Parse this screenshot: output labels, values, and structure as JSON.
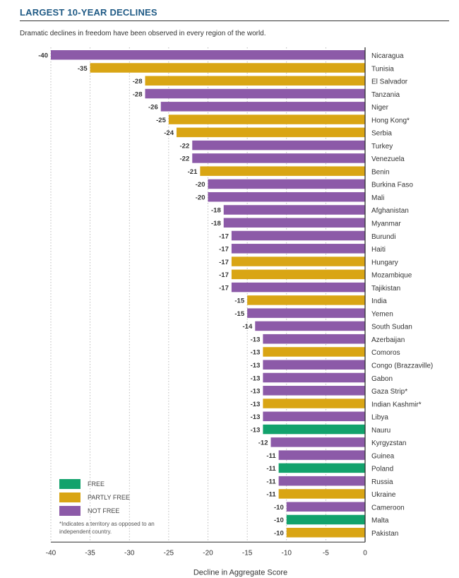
{
  "header": {
    "title": "LARGEST 10-YEAR DECLINES",
    "subtitle": "Dramatic declines in freedom have been observed in every region of the world."
  },
  "legend": {
    "items": [
      {
        "label": "FREE",
        "status": "free"
      },
      {
        "label": "PARTLY FREE",
        "status": "partly"
      },
      {
        "label": "NOT FREE",
        "status": "not"
      }
    ],
    "footnote": "*Indicates a territory as opposed to an independent country."
  },
  "colors": {
    "free": "#12a26c",
    "partly": "#d9a514",
    "not": "#8c5aa8"
  },
  "chart_data": {
    "type": "bar",
    "orientation": "horizontal",
    "title": "LARGEST 10-YEAR DECLINES",
    "xlabel": "Decline in Aggregate Score",
    "ylabel": "",
    "xlim": [
      -40,
      0
    ],
    "xticks": [
      -40,
      -35,
      -30,
      -25,
      -20,
      -15,
      -10,
      -5,
      0
    ],
    "grid": "vertical dotted",
    "legend_position": "bottom-left",
    "categories": [
      "Nicaragua",
      "Tunisia",
      "El Salvador",
      "Tanzania",
      "Niger",
      "Hong Kong*",
      "Serbia",
      "Turkey",
      "Venezuela",
      "Benin",
      "Burkina Faso",
      "Mali",
      "Afghanistan",
      "Myanmar",
      "Burundi",
      "Haiti",
      "Hungary",
      "Mozambique",
      "Tajikistan",
      "India",
      "Yemen",
      "South Sudan",
      "Azerbaijan",
      "Comoros",
      "Congo (Brazzaville)",
      "Gabon",
      "Gaza Strip*",
      "Indian Kashmir*",
      "Libya",
      "Nauru",
      "Kyrgyzstan",
      "Guinea",
      "Poland",
      "Russia",
      "Ukraine",
      "Cameroon",
      "Malta",
      "Pakistan"
    ],
    "values": [
      -40,
      -35,
      -28,
      -28,
      -26,
      -25,
      -24,
      -22,
      -22,
      -21,
      -20,
      -20,
      -18,
      -18,
      -17,
      -17,
      -17,
      -17,
      -17,
      -15,
      -15,
      -14,
      -13,
      -13,
      -13,
      -13,
      -13,
      -13,
      -13,
      -13,
      -12,
      -11,
      -11,
      -11,
      -11,
      -10,
      -10,
      -10
    ],
    "status": [
      "not",
      "partly",
      "partly",
      "not",
      "not",
      "partly",
      "partly",
      "not",
      "not",
      "partly",
      "not",
      "not",
      "not",
      "not",
      "not",
      "not",
      "partly",
      "partly",
      "not",
      "partly",
      "not",
      "not",
      "not",
      "partly",
      "not",
      "not",
      "not",
      "partly",
      "not",
      "free",
      "not",
      "not",
      "free",
      "not",
      "partly",
      "not",
      "free",
      "partly"
    ]
  }
}
